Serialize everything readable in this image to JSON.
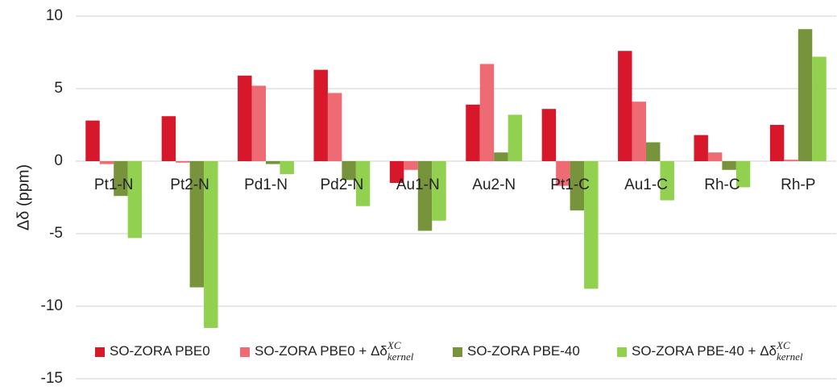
{
  "chart_data": {
    "type": "bar",
    "y_label": "Δδ (ppm)",
    "categories": [
      "Pt1-N",
      "Pt2-N",
      "Pd1-N",
      "Pd2-N",
      "Au1-N",
      "Au2-N",
      "Pt1-C",
      "Au1-C",
      "Rh-C",
      "Rh-P"
    ],
    "series": [
      {
        "name": "SO-ZORA PBE0",
        "color": "#d7182a",
        "values": [
          2.8,
          3.1,
          5.9,
          6.3,
          -1.5,
          3.9,
          3.6,
          7.6,
          1.8,
          2.5
        ]
      },
      {
        "name": "SO-ZORA PBE0 + Δδ",
        "name_superscript": "XC",
        "name_subscript": "kernel",
        "color": "#ee6b73",
        "values": [
          -0.2,
          -0.1,
          5.2,
          4.7,
          -0.6,
          6.7,
          -1.7,
          4.1,
          0.6,
          0.1
        ]
      },
      {
        "name": "SO-ZORA PBE-40",
        "color": "#77933c",
        "values": [
          -2.4,
          -8.7,
          -0.2,
          -1.3,
          -4.8,
          0.6,
          -3.4,
          1.3,
          -0.6,
          9.1
        ]
      },
      {
        "name": "SO-ZORA PBE-40 + Δδ",
        "name_superscript": "XC",
        "name_subscript": "kernel",
        "color": "#92d050",
        "values": [
          -5.3,
          -11.5,
          -0.9,
          -3.1,
          -4.1,
          3.2,
          -8.8,
          -2.7,
          -1.8,
          7.2
        ]
      }
    ],
    "ylim": [
      -15,
      10
    ],
    "yticks": [
      -15,
      -10,
      -5,
      0,
      5,
      10
    ],
    "grid": true,
    "legend": "bottom"
  }
}
